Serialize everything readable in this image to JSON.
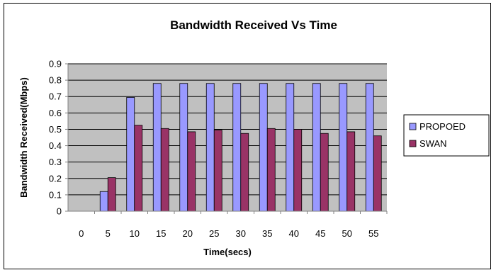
{
  "chart_data": {
    "type": "bar",
    "title": "Bandwidth Received Vs Time",
    "xlabel": "Time(secs)",
    "ylabel": "Bandwidth Received(Mbps)",
    "categories": [
      "0",
      "5",
      "10",
      "15",
      "20",
      "25",
      "30",
      "35",
      "40",
      "45",
      "50",
      "55"
    ],
    "ylim": [
      0,
      0.9
    ],
    "yticks": [
      "0",
      "0.1",
      "0.2",
      "0.3",
      "0.4",
      "0.5",
      "0.6",
      "0.7",
      "0.8",
      "0.9"
    ],
    "grid": true,
    "legend_position": "right",
    "series": [
      {
        "name": "PROPOED",
        "color": "#9999ff",
        "values": [
          0,
          0.12,
          0.695,
          0.78,
          0.78,
          0.78,
          0.78,
          0.78,
          0.78,
          0.78,
          0.78,
          0.78
        ]
      },
      {
        "name": "SWAN",
        "color": "#993366",
        "values": [
          0,
          0.205,
          0.525,
          0.505,
          0.485,
          0.495,
          0.475,
          0.505,
          0.5,
          0.475,
          0.485,
          0.46
        ]
      }
    ],
    "colors": {
      "plot_background": "#c0c0c0",
      "gridline": "#000000",
      "axis": "#808080"
    }
  }
}
